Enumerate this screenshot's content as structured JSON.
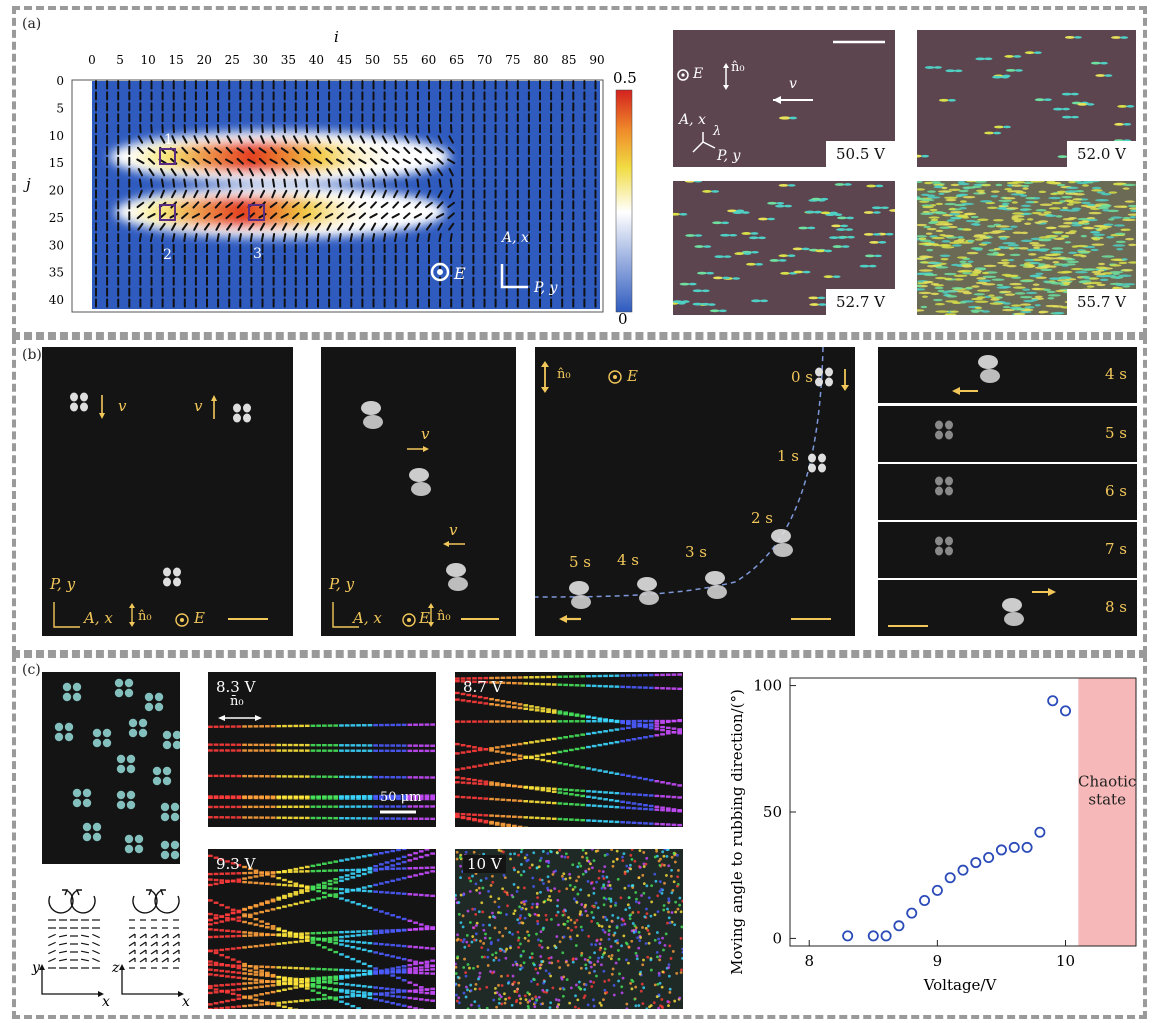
{
  "panels": {
    "a": "(a)",
    "b": "(b)",
    "c": "(c)"
  },
  "heatmap": {
    "top_axis_symbol": "i",
    "left_axis_symbol": "j",
    "x_ticks": [
      "0",
      "5",
      "10",
      "15",
      "20",
      "25",
      "30",
      "35",
      "40",
      "45",
      "50",
      "55",
      "60",
      "65",
      "70",
      "75",
      "80",
      "85",
      "90"
    ],
    "y_ticks": [
      "0",
      "5",
      "10",
      "15",
      "20",
      "25",
      "30",
      "35",
      "40"
    ],
    "colorbar_max": "0.5",
    "colorbar_min": "0",
    "markers": [
      "1",
      "2",
      "3"
    ],
    "field_label": "E",
    "analyzer_label": "A, x",
    "polarizer_label": "P, y",
    "colors": {
      "low": "#2f5bbf",
      "mid": "#ffffff",
      "high": "#d4221f"
    }
  },
  "micrographs": [
    {
      "voltage": "50.5 V"
    },
    {
      "voltage": "52.0 V"
    },
    {
      "voltage": "52.7 V"
    },
    {
      "voltage": "55.7 V"
    }
  ],
  "micro_annot": {
    "field": "E",
    "director": "n̂₀",
    "velocity": "v",
    "analyzer": "A, x",
    "polarizer": "P, y",
    "lambda": "λ"
  },
  "panel_b": {
    "v": "v",
    "director": "n̂₀",
    "field": "E",
    "analyzer": "A, x",
    "polarizer": "P, y",
    "times_curve": [
      "0 s",
      "1 s",
      "2 s",
      "3 s",
      "4 s",
      "5 s"
    ],
    "times_strip": [
      "4 s",
      "5 s",
      "6 s",
      "7 s",
      "8 s"
    ]
  },
  "panel_c": {
    "trajectories": [
      {
        "voltage": "8.3 V"
      },
      {
        "voltage": "8.7 V"
      },
      {
        "voltage": "9.3 V"
      },
      {
        "voltage": "10 V"
      }
    ],
    "director": "n̄₀",
    "scale_bar": "50 μm",
    "axes_left": {
      "y": "y",
      "x": "x"
    },
    "axes_right": {
      "z": "z",
      "x": "x"
    }
  },
  "chart_data": {
    "type": "scatter",
    "xlabel": "Voltage/V",
    "ylabel": "Moving angle to rubbing direction/(°)",
    "xlim": [
      7.85,
      10.55
    ],
    "ylim": [
      -3,
      103
    ],
    "x_ticks": [
      8,
      9,
      10
    ],
    "y_ticks": [
      0,
      50,
      100
    ],
    "x": [
      8.3,
      8.5,
      8.6,
      8.7,
      8.8,
      8.9,
      9.0,
      9.1,
      9.2,
      9.3,
      9.4,
      9.5,
      9.6,
      9.7,
      9.8,
      9.9,
      10.0
    ],
    "y": [
      1,
      1,
      1,
      5,
      10,
      15,
      19,
      24,
      27,
      30,
      32,
      35,
      36,
      36,
      42,
      94,
      90
    ],
    "shaded_region": {
      "x_start": 10.1,
      "x_end": 10.55,
      "label": "Chaotic state",
      "color": "#f6b8b8"
    },
    "marker_color": "#2b4bb8"
  }
}
